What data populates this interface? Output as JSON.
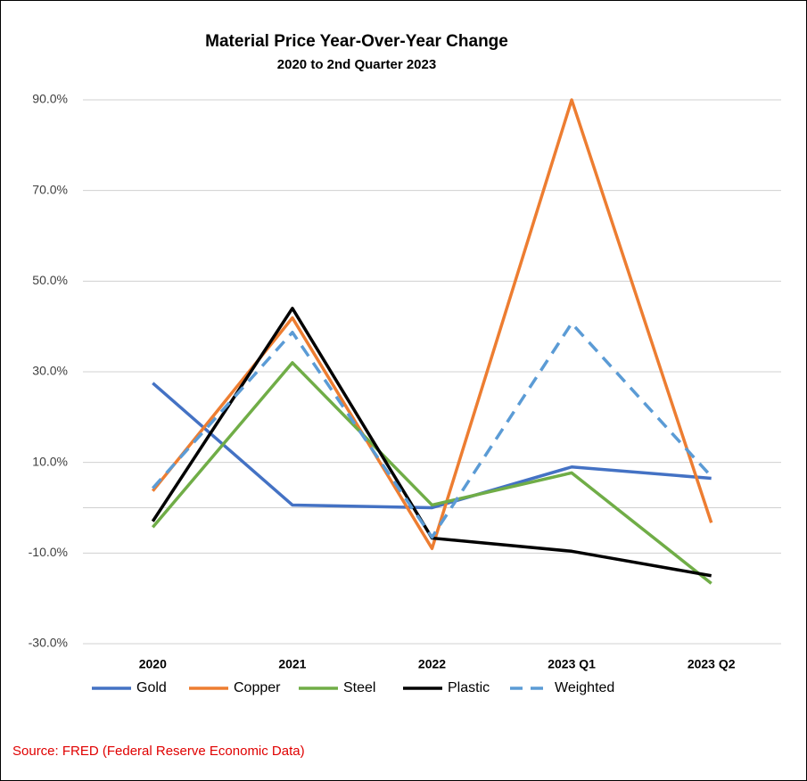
{
  "chart_data": {
    "type": "line",
    "title": "Material Price Year-Over-Year Change",
    "subtitle": "2020 to 2nd Quarter 2023",
    "categories": [
      "2020",
      "2021",
      "2022",
      "2023 Q1",
      "2023 Q2"
    ],
    "series": [
      {
        "name": "Gold",
        "color": "#4472c4",
        "values": [
          27.5,
          0.6,
          0,
          9,
          6.5
        ]
      },
      {
        "name": "Copper",
        "color": "#ed7d31",
        "values": [
          3.7,
          41.9,
          -9,
          90,
          -3.3
        ]
      },
      {
        "name": "Steel",
        "color": "#70ad47",
        "values": [
          -4.3,
          32,
          0.6,
          7.7,
          -16.7
        ]
      },
      {
        "name": "Plastic",
        "color": "#000000",
        "values": [
          -3,
          44,
          -6.7,
          -9.6,
          -15
        ]
      },
      {
        "name": "Weighted",
        "color": "#5b9bd5",
        "dashed": true,
        "values": [
          4.3,
          38.7,
          -6.5,
          40.7,
          6.9
        ]
      }
    ],
    "ylim": [
      -30,
      90
    ],
    "yticks": [
      {
        "value": 90,
        "label": "90.0%"
      },
      {
        "value": 70,
        "label": "70.0%"
      },
      {
        "value": 50,
        "label": "50.0%"
      },
      {
        "value": 30,
        "label": "30.0%"
      },
      {
        "value": 10,
        "label": "10.0%"
      },
      {
        "value": -10,
        "label": "-10.0%"
      },
      {
        "value": -30,
        "label": "-30.0%"
      }
    ],
    "grid": true,
    "legend": "bottom",
    "source": "Source: FRED (Federal Reserve Economic Data)"
  }
}
